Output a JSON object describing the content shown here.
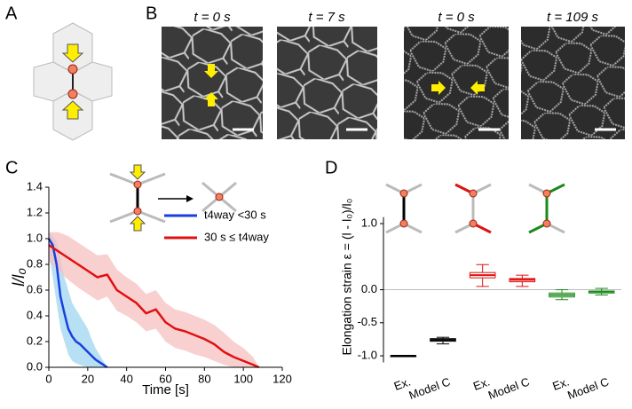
{
  "panels": {
    "a": "A",
    "b": "B",
    "c": "C",
    "d": "D"
  },
  "images": [
    {
      "time": "t = 0 s"
    },
    {
      "time": "t = 7 s"
    },
    {
      "time": "t = 0 s"
    },
    {
      "time": "t = 109 s"
    }
  ],
  "chart_data": [
    {
      "type": "line",
      "xlabel": "Time [s]",
      "ylabel": "l/l₀",
      "xlim": [
        0,
        120
      ],
      "xticks": [
        0,
        20,
        40,
        60,
        80,
        100,
        120
      ],
      "ylim": [
        0,
        1.4
      ],
      "yticks": [
        {
          "value": 0,
          "label": "0.0"
        },
        0.2,
        0.4,
        0.6,
        0.8,
        {
          "value": 1,
          "label": "1.0"
        },
        1.2,
        1.4
      ],
      "legend": "center right",
      "series": [
        {
          "name": "t4way <30 s",
          "color": "#1a3fe0",
          "band_color": "#9fd6f2",
          "x": [
            0,
            2,
            4,
            6,
            8,
            10,
            12,
            14,
            16,
            18,
            20,
            22,
            24,
            26,
            28,
            30
          ],
          "values": [
            1.0,
            0.95,
            0.8,
            0.55,
            0.42,
            0.3,
            0.24,
            0.2,
            0.18,
            0.15,
            0.12,
            0.09,
            0.06,
            0.04,
            0.02,
            0
          ],
          "lower": [
            0.9,
            0.7,
            0.5,
            0.3,
            0.2,
            0.1,
            0.05,
            0.03,
            0.02,
            0.01,
            0,
            0,
            0,
            0,
            0,
            0
          ],
          "upper": [
            1.05,
            1.02,
            0.98,
            0.85,
            0.7,
            0.6,
            0.5,
            0.45,
            0.4,
            0.35,
            0.3,
            0.22,
            0.15,
            0.1,
            0.05,
            0
          ]
        },
        {
          "name": "30 s ≤ t4way",
          "color": "#e01010",
          "band_color": "#f7c0c0",
          "x": [
            0,
            5,
            10,
            15,
            20,
            25,
            30,
            35,
            40,
            45,
            50,
            55,
            60,
            65,
            70,
            75,
            80,
            85,
            90,
            95,
            100,
            105,
            108
          ],
          "values": [
            0.95,
            0.9,
            0.85,
            0.8,
            0.75,
            0.7,
            0.72,
            0.6,
            0.55,
            0.5,
            0.42,
            0.45,
            0.35,
            0.3,
            0.28,
            0.25,
            0.22,
            0.18,
            0.12,
            0.08,
            0.05,
            0.02,
            0
          ],
          "lower": [
            0.82,
            0.75,
            0.68,
            0.62,
            0.57,
            0.52,
            0.55,
            0.44,
            0.4,
            0.35,
            0.28,
            0.3,
            0.2,
            0.15,
            0.13,
            0.1,
            0.08,
            0.05,
            0.02,
            0,
            0,
            0,
            0
          ],
          "upper": [
            1.05,
            1.05,
            1.02,
            0.97,
            0.92,
            0.87,
            0.88,
            0.76,
            0.7,
            0.65,
            0.57,
            0.6,
            0.5,
            0.45,
            0.43,
            0.4,
            0.37,
            0.33,
            0.27,
            0.2,
            0.15,
            0.08,
            0
          ]
        }
      ]
    },
    {
      "type": "box",
      "ylabel": "Elongation strain ε = (l - l₀)/l₀",
      "categories": [
        "Ex.",
        "Model C",
        "Ex.",
        "Model C",
        "Ex.",
        "Model C"
      ],
      "colors": [
        "#000000",
        "#000000",
        "#e01010",
        "#e01010",
        "#1a8a1a",
        "#1a8a1a"
      ],
      "median": [
        -1.0,
        -0.76,
        0.22,
        0.15,
        -0.08,
        -0.03
      ],
      "q1": [
        -1.0,
        -0.78,
        0.18,
        0.12,
        -0.11,
        -0.05
      ],
      "q3": [
        -1.0,
        -0.74,
        0.26,
        0.17,
        -0.05,
        -0.02
      ],
      "whisker_low": [
        -1.0,
        -0.82,
        0.05,
        0.05,
        -0.15,
        -0.08
      ],
      "whisker_high": [
        -1.0,
        -0.72,
        0.38,
        0.22,
        0.0,
        0.02
      ],
      "ylim": [
        -1.1,
        1.5
      ],
      "yticks": [
        {
          "value": -1,
          "label": "-1.0"
        },
        -0.5,
        {
          "value": 0,
          "label": "0.0"
        },
        {
          "value": 1,
          "label": "1.0"
        }
      ]
    }
  ]
}
